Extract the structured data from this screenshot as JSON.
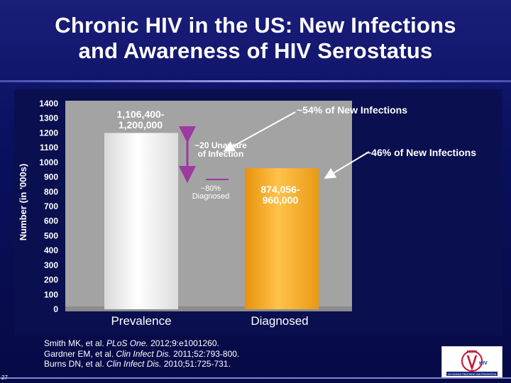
{
  "slide": {
    "title_line1": "Chronic HIV in the US: New Infections",
    "title_line2": "and Awareness of HIV Serostatus",
    "page_number": "27"
  },
  "references": [
    {
      "pre": "Smith MK, et al. ",
      "journal": "PLoS One.",
      "post": " 2012;9:e1001260."
    },
    {
      "pre": "Gardner EM, et al. ",
      "journal": "Clin Infect Dis.",
      "post": " 2011;52:793-800."
    },
    {
      "pre": "Burns DN, et al. ",
      "journal": "Clin Infect Dis.",
      "post": " 2010;51:725-731."
    }
  ],
  "logo": {
    "line1": "FIGHT",
    "line2": "HIV",
    "caption": "US HIV/AIDS TREATMENT AND PREVENTION"
  },
  "chart_data": {
    "type": "bar",
    "categories": [
      "Prevalence",
      "Diagnosed"
    ],
    "values": [
      1200,
      960
    ],
    "ylabel": "Number (in '000s)",
    "ylim": [
      0,
      1400
    ],
    "yticks": [
      0,
      100,
      200,
      300,
      400,
      500,
      600,
      700,
      800,
      900,
      1000,
      1100,
      1200,
      1300,
      1400
    ],
    "grid": false,
    "bar_colors": [
      "#f0f0f0",
      "#f5a81c"
    ],
    "bar_labels": [
      "1,106,400-\n1,200,000",
      "874,056-\n960,000"
    ],
    "annotations": {
      "unaware": "~20 Unaware\nof Infection",
      "diagnosed_pct": "~80%\nDiagnosed",
      "new_inf_unaware": "~54% of New Infections",
      "new_inf_aware": "~46% of New Infections"
    },
    "colors": {
      "plot_bg": "#a3a3a3",
      "bracket": "#9c3aa0",
      "arrow": "#ffffff"
    }
  }
}
